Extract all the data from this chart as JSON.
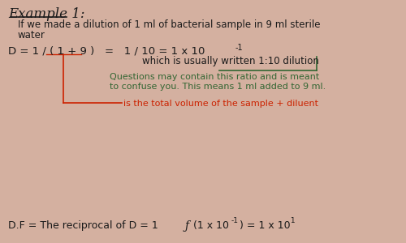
{
  "background_color": "#d4b0a0",
  "main_text_color": "#1a1a1a",
  "red_color": "#cc2200",
  "green_color": "#336633",
  "title": "Example 1:",
  "line1": "If we made a dilution of 1 ml of bacterial sample in 9 ml sterile",
  "line2": "water",
  "green_note_line1": "Questions may contain this ratio and is meant",
  "green_note_line2": "to confuse you. This means 1 ml added to 9 ml.",
  "red_note": "is the total volume of the sample + diluent",
  "figsize": [
    5.0,
    3.0
  ],
  "dpi": 100
}
